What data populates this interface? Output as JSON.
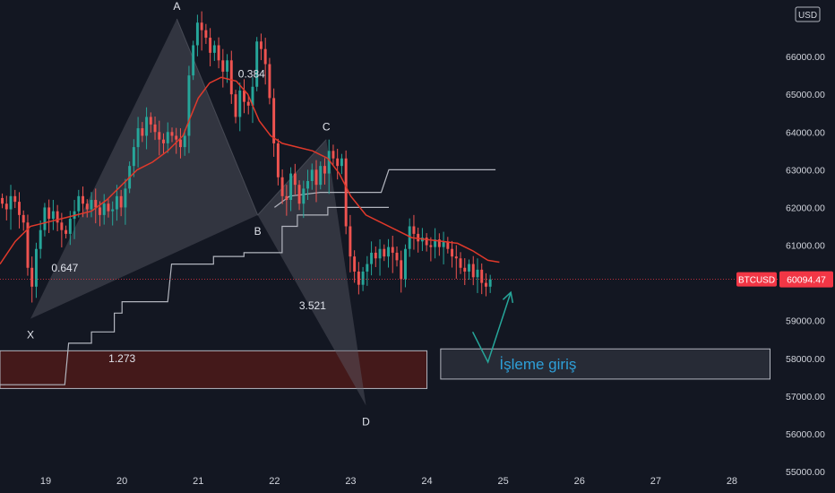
{
  "symbol": "BTCUSD",
  "currency": "USD",
  "last_price": "60094.47",
  "colors": {
    "background": "#131722",
    "up": "#26a69a",
    "down": "#ef5350",
    "moving_average": "#e0392b",
    "channel_line": "#b2b5be",
    "pattern_fill": "#5d606b",
    "price_tag": "#f23645",
    "entry_text": "#2e9fd8"
  },
  "chart_data": {
    "type": "candlestick",
    "ylim": [
      55000,
      67500
    ],
    "xlim": [
      18.4,
      28.6
    ],
    "x_ticks": [
      19,
      20,
      21,
      22,
      23,
      24,
      25,
      26,
      27,
      28
    ],
    "y_ticks": [
      55000,
      56000,
      57000,
      58000,
      59000,
      60000,
      61000,
      62000,
      63000,
      64000,
      65000,
      66000
    ],
    "y_tick_labels": [
      "55000.00",
      "56000.00",
      "57000.00",
      "58000.00",
      "59000.00",
      "",
      "61000.00",
      "62000.00",
      "63000.00",
      "64000.00",
      "65000.00",
      "66000.00"
    ],
    "pattern_points": [
      {
        "label": "X",
        "x": 18.8,
        "price": 59050
      },
      {
        "label": "A",
        "x": 20.72,
        "price": 67000
      },
      {
        "label": "B",
        "x": 21.78,
        "price": 61800
      },
      {
        "label": "C",
        "x": 22.68,
        "price": 63800
      },
      {
        "label": "D",
        "x": 23.2,
        "price": 56750
      }
    ],
    "ratios": [
      {
        "text": "0.384",
        "x": 21.7,
        "price": 65450
      },
      {
        "text": "0.647",
        "x": 19.25,
        "price": 60300
      },
      {
        "text": "3.521",
        "x": 22.5,
        "price": 59300
      },
      {
        "text": "1.273",
        "x": 20.0,
        "price": 57900
      }
    ],
    "zones": [
      {
        "name": "prz",
        "x1": 18.4,
        "x2": 24.0,
        "price_top": 58200,
        "price_bottom": 57200,
        "fill": "#4a1a1a"
      },
      {
        "name": "entry",
        "x1": 24.18,
        "x2": 28.5,
        "price_top": 58250,
        "price_bottom": 57450,
        "fill": "#2a2e39"
      }
    ],
    "entry_label": "İşleme giriş",
    "entry_arrow": [
      {
        "x": 24.6,
        "price": 58700
      },
      {
        "x": 24.8,
        "price": 57900
      },
      {
        "x": 25.1,
        "price": 59750
      }
    ],
    "moving_average": [
      [
        18.4,
        60500
      ],
      [
        18.6,
        61100
      ],
      [
        18.8,
        61500
      ],
      [
        19.0,
        61600
      ],
      [
        19.2,
        61700
      ],
      [
        19.4,
        61800
      ],
      [
        19.6,
        61900
      ],
      [
        19.8,
        62200
      ],
      [
        20.0,
        62600
      ],
      [
        20.2,
        63000
      ],
      [
        20.4,
        63200
      ],
      [
        20.6,
        63500
      ],
      [
        20.8,
        63900
      ],
      [
        20.9,
        64400
      ],
      [
        21.0,
        64900
      ],
      [
        21.15,
        65300
      ],
      [
        21.3,
        65450
      ],
      [
        21.5,
        65350
      ],
      [
        21.65,
        65000
      ],
      [
        21.8,
        64300
      ],
      [
        21.95,
        63900
      ],
      [
        22.1,
        63700
      ],
      [
        22.3,
        63600
      ],
      [
        22.5,
        63500
      ],
      [
        22.7,
        63300
      ],
      [
        22.85,
        62900
      ],
      [
        23.0,
        62300
      ],
      [
        23.2,
        61800
      ],
      [
        23.4,
        61600
      ],
      [
        23.6,
        61400
      ],
      [
        23.8,
        61200
      ],
      [
        24.0,
        61150
      ],
      [
        24.2,
        61100
      ],
      [
        24.4,
        61050
      ],
      [
        24.6,
        60850
      ],
      [
        24.8,
        60600
      ],
      [
        24.95,
        60550
      ]
    ],
    "channel_upper": [
      [
        22.0,
        62000
      ],
      [
        22.2,
        62300
      ],
      [
        22.6,
        62400
      ],
      [
        23.4,
        62400
      ],
      [
        23.5,
        63000
      ],
      [
        24.9,
        63000
      ]
    ],
    "channel_lower": [
      [
        18.4,
        57300
      ],
      [
        19.25,
        57300
      ],
      [
        19.3,
        58400
      ],
      [
        19.6,
        58400
      ],
      [
        19.6,
        58700
      ],
      [
        19.9,
        58700
      ],
      [
        19.9,
        59200
      ],
      [
        20.0,
        59200
      ],
      [
        20.0,
        59500
      ],
      [
        20.6,
        59500
      ],
      [
        20.65,
        60500
      ],
      [
        21.2,
        60500
      ],
      [
        21.2,
        60700
      ],
      [
        21.6,
        60700
      ],
      [
        21.6,
        60800
      ],
      [
        22.1,
        60800
      ],
      [
        22.1,
        61500
      ],
      [
        22.3,
        61500
      ],
      [
        22.3,
        61800
      ],
      [
        22.7,
        61800
      ],
      [
        22.7,
        62000
      ],
      [
        23.5,
        62000
      ]
    ],
    "candles_close": [
      62100,
      61950,
      62300,
      62150,
      61800,
      61600,
      60400,
      59900,
      60900,
      61400,
      62000,
      61700,
      61900,
      61600,
      61400,
      61300,
      61700,
      61900,
      62300,
      62100,
      61950,
      62200,
      62000,
      61800,
      62100,
      61900,
      61950,
      62300,
      62000,
      62500,
      63100,
      63600,
      64100,
      63900,
      64400,
      64200,
      64000,
      63800,
      63700,
      64000,
      63900,
      63800,
      63600,
      63900,
      65500,
      66300,
      66900,
      66700,
      66500,
      66100,
      66300,
      65900,
      65600,
      65900,
      65000,
      64400,
      65100,
      64800,
      64700,
      65200,
      66400,
      66200,
      65800,
      64900,
      63700,
      62800,
      62300,
      62200,
      62900,
      62600,
      62100,
      62500,
      62700,
      63000,
      62600,
      63100,
      62900,
      63500,
      63300,
      63100,
      63300,
      61500,
      60700,
      60300,
      59950,
      60300,
      60500,
      60800,
      60650,
      60900,
      60700,
      60950,
      60800,
      60600,
      60100,
      60900,
      61500,
      61300,
      61100,
      61200,
      61000,
      60950,
      61150,
      60950,
      61100,
      60900,
      60700,
      60650,
      60400,
      60300,
      60500,
      60150,
      60350,
      60000,
      59900,
      60094
    ]
  }
}
